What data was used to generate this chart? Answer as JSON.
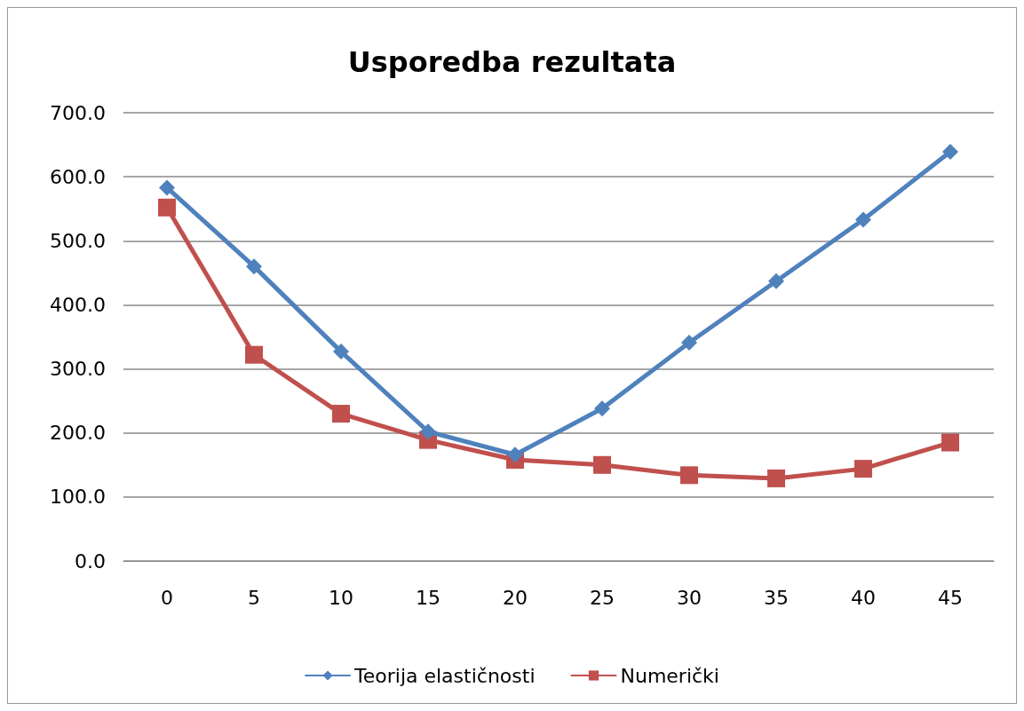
{
  "chart_data": {
    "type": "line",
    "title": "Usporedba rezultata",
    "categories": [
      "0",
      "5",
      "10",
      "15",
      "20",
      "25",
      "30",
      "35",
      "40",
      "45"
    ],
    "series": [
      {
        "name": "Teorija elastičnosti",
        "color": "#4f81bd",
        "marker": "diamond",
        "values": [
          583,
          460,
          327,
          202,
          166,
          238,
          341,
          437,
          533,
          639
        ]
      },
      {
        "name": "Numerički",
        "color": "#c0504d",
        "marker": "square",
        "values": [
          552,
          322,
          230,
          189,
          158,
          150,
          134,
          129,
          144,
          185
        ]
      }
    ],
    "ylim": [
      0,
      700
    ],
    "yticks": [
      {
        "value": 0,
        "label": "0.0"
      },
      {
        "value": 100,
        "label": "100.0"
      },
      {
        "value": 200,
        "label": "200.0"
      },
      {
        "value": 300,
        "label": "300.0"
      },
      {
        "value": 400,
        "label": "400.0"
      },
      {
        "value": 500,
        "label": "500.0"
      },
      {
        "value": 600,
        "label": "600.0"
      },
      {
        "value": 700,
        "label": "700.0"
      }
    ],
    "grid": "y",
    "legend": "bottom",
    "line_style": "solid"
  }
}
